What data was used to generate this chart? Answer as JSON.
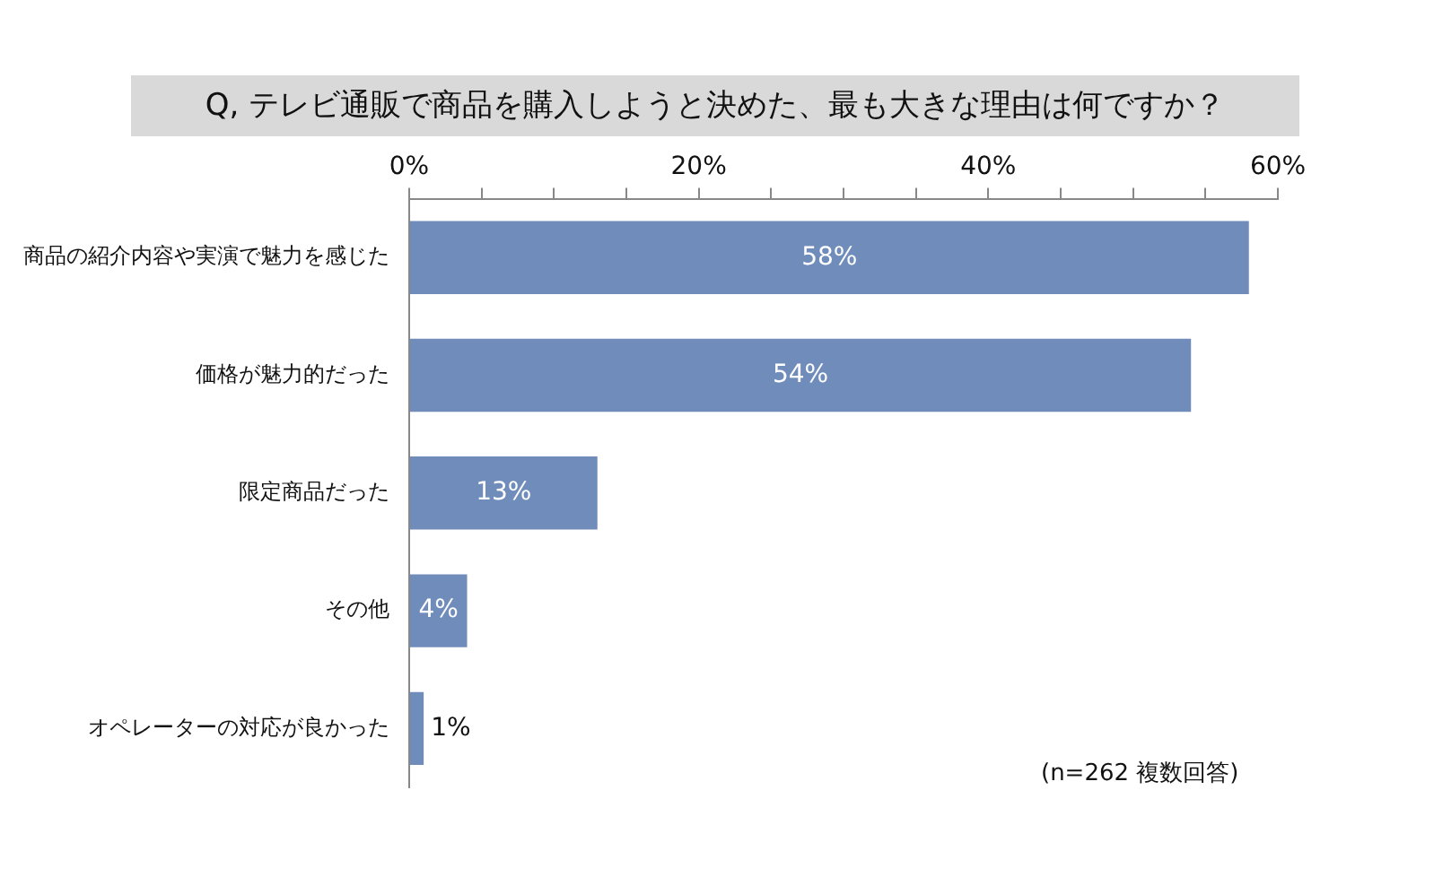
{
  "chart_data": {
    "type": "bar",
    "orientation": "horizontal",
    "title": "Q, テレビ通販で商品を購入しようと決めた、最も大きな理由は何ですか？",
    "categories": [
      "商品の紹介内容や実演で魅力を感じた",
      "価格が魅力的だった",
      "限定商品だった",
      "その他",
      "オペレーターの対応が良かった"
    ],
    "values": [
      58,
      54,
      13,
      4,
      1
    ],
    "color": "#6f8cba",
    "value_labels": [
      "58%",
      "54%",
      "13%",
      "4%",
      "1%"
    ],
    "xlim": [
      0,
      60
    ],
    "xticks": [
      {
        "value": 0,
        "label": "0%"
      },
      {
        "value": 5,
        "label": null
      },
      {
        "value": 10,
        "label": null
      },
      {
        "value": 15,
        "label": null
      },
      {
        "value": 20,
        "label": "20%"
      },
      {
        "value": 25,
        "label": null
      },
      {
        "value": 30,
        "label": null
      },
      {
        "value": 35,
        "label": null
      },
      {
        "value": 40,
        "label": "40%"
      },
      {
        "value": 45,
        "label": null
      },
      {
        "value": 50,
        "label": null
      },
      {
        "value": 55,
        "label": null
      },
      {
        "value": 60,
        "label": "60%"
      }
    ],
    "grid": false,
    "legend": false,
    "annotations": [
      "(n=262 複数回答)"
    ]
  }
}
